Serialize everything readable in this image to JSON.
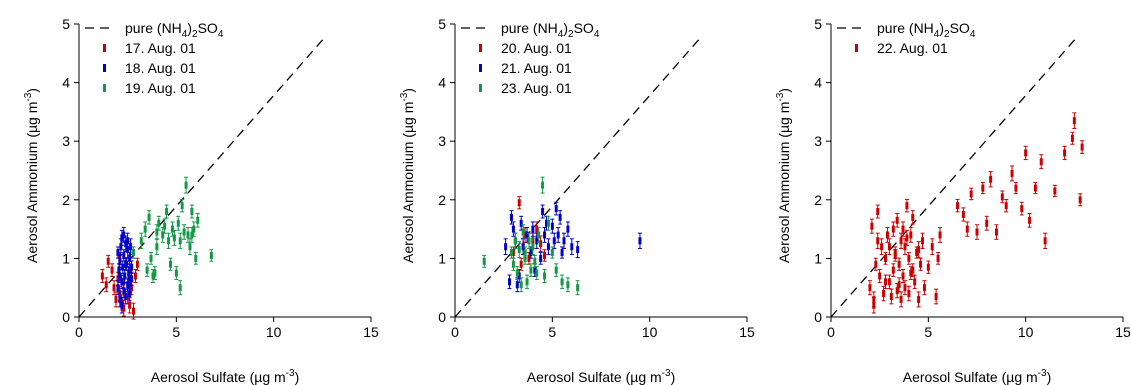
{
  "chart_data": [
    {
      "type": "scatter",
      "xlabel": "Aerosol Sulfate (µg m",
      "xlabel_sup": "-3",
      "xlabel_end": ")",
      "ylabel": "Aerosol Ammonium (µg m",
      "ylabel_sup": "-3",
      "ylabel_end": ")",
      "xlim": [
        0,
        15
      ],
      "ylim": [
        0,
        5
      ],
      "xticks": [
        "0",
        "5",
        "10",
        "15"
      ],
      "yticks": [
        "0",
        "1",
        "2",
        "3",
        "4",
        "5"
      ],
      "reference_line": {
        "name": "pure (NH4)2SO4",
        "x": [
          0,
          12.7
        ],
        "y": [
          0,
          4.8
        ],
        "style": "dashed",
        "color": "#000000"
      },
      "legend_position": "top-left",
      "error_bars": true,
      "series": [
        {
          "name": "17. Aug. 01",
          "color": "#cc0000",
          "x": [
            1.2,
            1.4,
            1.5,
            1.7,
            1.8,
            1.9,
            2.0,
            2.1,
            2.1,
            2.2,
            2.3,
            2.4,
            2.5,
            2.6,
            2.6,
            2.7,
            2.8,
            2.9,
            3.0,
            2.3
          ],
          "y": [
            0.7,
            0.55,
            0.95,
            0.8,
            0.5,
            0.3,
            0.65,
            1.0,
            0.4,
            0.25,
            0.6,
            0.9,
            0.35,
            0.8,
            0.2,
            0.5,
            0.1,
            0.7,
            0.9,
            0.15
          ]
        },
        {
          "name": "18. Aug. 01",
          "color": "#0000cc",
          "x": [
            2.0,
            2.0,
            2.05,
            2.1,
            2.1,
            2.15,
            2.2,
            2.2,
            2.25,
            2.3,
            2.3,
            2.35,
            2.4,
            2.4,
            2.45,
            2.5,
            2.5,
            2.55,
            2.6,
            2.6,
            2.65,
            2.7,
            2.7,
            2.2,
            2.3,
            2.4,
            2.5,
            2.1,
            2.6,
            2.8
          ],
          "y": [
            0.5,
            1.1,
            0.8,
            0.3,
            0.95,
            1.2,
            0.6,
            1.35,
            0.85,
            0.45,
            1.05,
            0.7,
            1.25,
            0.35,
            0.9,
            0.55,
            1.15,
            0.75,
            1.0,
            0.4,
            1.2,
            0.85,
            0.65,
            0.2,
            1.4,
            0.9,
            1.3,
            0.7,
            0.6,
            1.1
          ]
        },
        {
          "name": "19. Aug. 01",
          "color": "#119944",
          "x": [
            2.8,
            3.2,
            3.4,
            3.5,
            3.6,
            3.8,
            4.0,
            4.1,
            4.3,
            4.5,
            4.6,
            4.7,
            4.8,
            4.9,
            5.0,
            5.1,
            5.2,
            5.3,
            5.4,
            5.5,
            5.6,
            5.7,
            5.8,
            5.9,
            6.0,
            6.1,
            6.8,
            3.7,
            4.4,
            5.2,
            4.0,
            3.9,
            5.8
          ],
          "y": [
            1.1,
            1.3,
            1.5,
            0.8,
            1.7,
            0.7,
            1.2,
            1.6,
            1.4,
            1.8,
            1.3,
            0.9,
            1.5,
            1.35,
            0.75,
            1.6,
            0.5,
            1.9,
            1.45,
            2.25,
            1.4,
            1.2,
            1.8,
            1.5,
            1.0,
            1.65,
            1.05,
            1.0,
            1.55,
            1.3,
            1.45,
            0.75,
            1.4
          ]
        }
      ]
    },
    {
      "type": "scatter",
      "xlabel": "Aerosol Sulfate (µg m",
      "xlabel_sup": "-3",
      "xlabel_end": ")",
      "ylabel": "Aerosol Ammonium (µg m",
      "ylabel_sup": "-3",
      "ylabel_end": ")",
      "xlim": [
        0,
        15
      ],
      "ylim": [
        0,
        5
      ],
      "xticks": [
        "0",
        "5",
        "10",
        "15"
      ],
      "yticks": [
        "0",
        "1",
        "2",
        "3",
        "4",
        "5"
      ],
      "reference_line": {
        "name": "pure (NH4)2SO4",
        "x": [
          0,
          12.7
        ],
        "y": [
          0,
          4.8
        ],
        "style": "dashed",
        "color": "#000000"
      },
      "legend_position": "top-left",
      "error_bars": true,
      "series": [
        {
          "name": "20. Aug. 01",
          "color": "#cc0000",
          "x": [
            3.0,
            3.3,
            3.5,
            3.6,
            3.8,
            4.0,
            4.2,
            4.4,
            3.4,
            4.6
          ],
          "y": [
            1.1,
            1.95,
            1.2,
            1.4,
            1.0,
            1.3,
            1.5,
            1.25,
            0.9,
            1.05
          ]
        },
        {
          "name": "21. Aug. 01",
          "color": "#0000cc",
          "x": [
            2.6,
            2.8,
            2.9,
            3.0,
            3.1,
            3.2,
            3.4,
            3.5,
            3.7,
            3.9,
            4.0,
            4.2,
            4.4,
            4.5,
            4.6,
            4.8,
            5.0,
            5.1,
            5.2,
            5.3,
            5.4,
            5.5,
            5.6,
            5.8,
            6.0,
            6.3,
            9.5,
            3.3,
            4.1,
            4.7
          ],
          "y": [
            1.2,
            0.6,
            1.7,
            1.5,
            1.3,
            0.55,
            1.6,
            1.2,
            1.4,
            1.1,
            1.5,
            1.3,
            1.0,
            1.8,
            1.4,
            1.2,
            1.55,
            1.3,
            1.85,
            1.4,
            1.7,
            1.1,
            1.3,
            1.5,
            1.2,
            1.15,
            1.3,
            0.7,
            0.8,
            1.6
          ]
        },
        {
          "name": "23. Aug. 01",
          "color": "#119944",
          "x": [
            1.5,
            2.9,
            3.0,
            3.1,
            3.2,
            3.3,
            3.4,
            3.5,
            3.6,
            3.7,
            3.8,
            3.9,
            4.0,
            4.1,
            4.3,
            4.5,
            4.6,
            4.8,
            5.0,
            5.2,
            5.5,
            5.8,
            6.3,
            3.6,
            4.2
          ],
          "y": [
            0.95,
            1.1,
            0.9,
            1.3,
            0.75,
            1.15,
            0.55,
            1.45,
            1.0,
            0.6,
            1.3,
            0.8,
            1.2,
            0.95,
            1.4,
            2.25,
            0.7,
            1.6,
            1.1,
            0.8,
            0.6,
            0.55,
            0.5,
            1.1,
            0.75
          ]
        }
      ]
    },
    {
      "type": "scatter",
      "xlabel": "Aerosol Sulfate (µg m",
      "xlabel_sup": "-3",
      "xlabel_end": ")",
      "ylabel": "Aerosol Ammonium (µg m",
      "ylabel_sup": "-3",
      "ylabel_end": ")",
      "xlim": [
        0,
        15
      ],
      "ylim": [
        0,
        5
      ],
      "xticks": [
        "0",
        "5",
        "10",
        "15"
      ],
      "yticks": [
        "0",
        "1",
        "2",
        "3",
        "4",
        "5"
      ],
      "reference_line": {
        "name": "pure (NH4)2SO4",
        "x": [
          0,
          12.7
        ],
        "y": [
          0,
          4.8
        ],
        "style": "dashed",
        "color": "#000000"
      },
      "legend_position": "top-left",
      "error_bars": true,
      "series": [
        {
          "name": "22. Aug. 01",
          "color": "#cc0000",
          "x": [
            2.0,
            2.1,
            2.2,
            2.3,
            2.4,
            2.5,
            2.6,
            2.7,
            2.8,
            2.9,
            3.0,
            3.0,
            3.1,
            3.2,
            3.2,
            3.3,
            3.4,
            3.4,
            3.5,
            3.6,
            3.6,
            3.7,
            3.8,
            3.8,
            3.9,
            4.0,
            4.0,
            4.1,
            4.2,
            4.2,
            4.3,
            4.4,
            4.5,
            4.6,
            4.7,
            4.8,
            5.0,
            5.2,
            5.4,
            5.5,
            5.6,
            2.4,
            2.8,
            3.3,
            3.7,
            4.1,
            4.5,
            2.2,
            3.5,
            3.9,
            6.5,
            6.8,
            7.0,
            7.2,
            7.5,
            7.8,
            8.0,
            8.2,
            8.5,
            8.8,
            9.0,
            9.3,
            9.5,
            9.8,
            10.0,
            10.2,
            10.5,
            10.8,
            11.0,
            11.5,
            12.0,
            12.4,
            12.5,
            12.8,
            12.9
          ],
          "y": [
            0.5,
            1.55,
            0.3,
            0.9,
            1.3,
            0.7,
            1.2,
            0.4,
            1.0,
            1.4,
            0.6,
            1.2,
            0.35,
            1.5,
            0.8,
            1.1,
            0.45,
            1.65,
            0.9,
            0.3,
            1.3,
            0.7,
            1.2,
            0.5,
            1.9,
            1.0,
            0.4,
            1.4,
            0.8,
            1.7,
            0.6,
            1.1,
            0.3,
            0.9,
            1.3,
            0.5,
            0.85,
            1.2,
            0.35,
            1.0,
            1.4,
            1.8,
            0.6,
            1.05,
            1.5,
            0.75,
            1.15,
            0.2,
            0.55,
            1.35,
            1.9,
            1.75,
            1.5,
            2.1,
            1.45,
            2.2,
            1.6,
            2.35,
            1.45,
            2.05,
            1.9,
            2.45,
            2.2,
            1.85,
            2.8,
            1.65,
            2.2,
            2.65,
            1.3,
            2.15,
            2.8,
            3.05,
            3.35,
            2.0,
            2.9
          ]
        }
      ]
    }
  ]
}
